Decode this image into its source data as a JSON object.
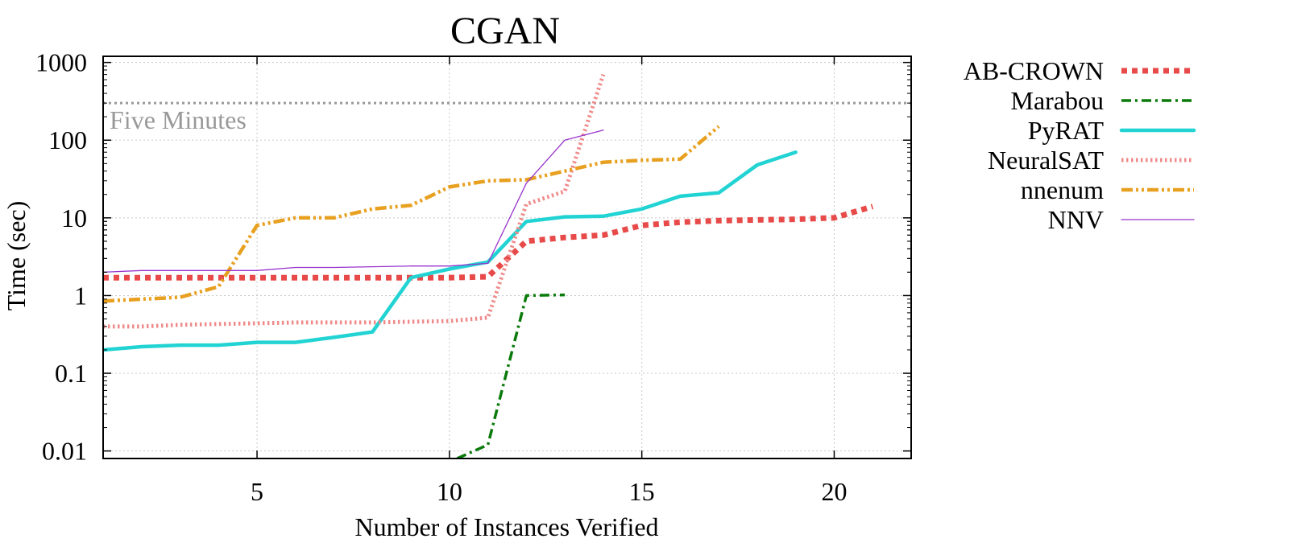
{
  "chart_data": {
    "type": "line",
    "title": "CGAN",
    "xlabel": "Number of Instances Verified",
    "ylabel": "Time (sec)",
    "xlim": [
      1,
      22
    ],
    "ylim": [
      0.008,
      1200
    ],
    "yscale": "log",
    "grid": true,
    "legend_position": "right",
    "xticks": [
      5,
      10,
      15,
      20
    ],
    "yticks": [
      {
        "value": 0.01,
        "label": "0.01"
      },
      {
        "value": 0.1,
        "label": "0.1"
      },
      {
        "value": 1,
        "label": "1"
      },
      {
        "value": 10,
        "label": "10"
      },
      {
        "value": 100,
        "label": "100"
      },
      {
        "value": 1000,
        "label": "1000"
      }
    ],
    "reference_line": {
      "value": 300,
      "label": "Five Minutes",
      "color": "#999999"
    },
    "series": [
      {
        "name": "AB-CROWN",
        "color": "#e84a4a",
        "style": "dotted-thick",
        "x": [
          1,
          2,
          3,
          4,
          5,
          6,
          7,
          8,
          9,
          10,
          11,
          12,
          13,
          14,
          15,
          16,
          17,
          18,
          19,
          20,
          21
        ],
        "y": [
          1.7,
          1.7,
          1.7,
          1.7,
          1.7,
          1.7,
          1.7,
          1.7,
          1.7,
          1.7,
          1.75,
          5.0,
          5.6,
          6.0,
          8.0,
          8.8,
          9.2,
          9.4,
          9.6,
          10.0,
          14.0
        ]
      },
      {
        "name": "Marabou",
        "color": "#0a7a0a",
        "style": "dashdot",
        "x": [
          10.2,
          11,
          12,
          13
        ],
        "y": [
          0.008,
          0.012,
          1.0,
          1.02
        ]
      },
      {
        "name": "PyRAT",
        "color": "#22d3d3",
        "style": "solid-thick",
        "x": [
          1,
          2,
          3,
          4,
          5,
          6,
          7,
          8,
          9,
          10,
          11,
          12,
          13,
          14,
          15,
          16,
          17,
          18,
          19
        ],
        "y": [
          0.2,
          0.22,
          0.23,
          0.23,
          0.25,
          0.25,
          0.29,
          0.34,
          1.7,
          2.2,
          2.7,
          9.0,
          10.3,
          10.5,
          13.0,
          19.0,
          21.0,
          48.0,
          70.0
        ]
      },
      {
        "name": "NeuralSAT",
        "color": "#f08a8a",
        "style": "dotted-thin",
        "x": [
          1,
          2,
          3,
          4,
          5,
          6,
          7,
          8,
          9,
          10,
          11,
          12,
          13,
          14
        ],
        "y": [
          0.4,
          0.4,
          0.42,
          0.43,
          0.44,
          0.45,
          0.45,
          0.45,
          0.46,
          0.47,
          0.52,
          15.0,
          22.0,
          700.0
        ]
      },
      {
        "name": "nnenum",
        "color": "#e8a020",
        "style": "dashdot-dotted",
        "x": [
          1,
          2,
          3,
          4,
          5,
          6,
          7,
          8,
          9,
          10,
          11,
          12,
          13,
          14,
          15,
          16,
          17
        ],
        "y": [
          0.85,
          0.9,
          0.95,
          1.3,
          8.0,
          10.0,
          10.0,
          13.0,
          14.5,
          25.0,
          30.0,
          31.0,
          40.0,
          52.0,
          55.0,
          57.0,
          150.0
        ]
      },
      {
        "name": "NNV",
        "color": "#9933cc",
        "style": "thin",
        "x": [
          1,
          2,
          3,
          4,
          5,
          6,
          7,
          8,
          9,
          10,
          11,
          12,
          13,
          14
        ],
        "y": [
          2.0,
          2.1,
          2.1,
          2.1,
          2.1,
          2.3,
          2.3,
          2.35,
          2.4,
          2.4,
          2.6,
          28.0,
          100.0,
          135.0
        ]
      }
    ]
  }
}
